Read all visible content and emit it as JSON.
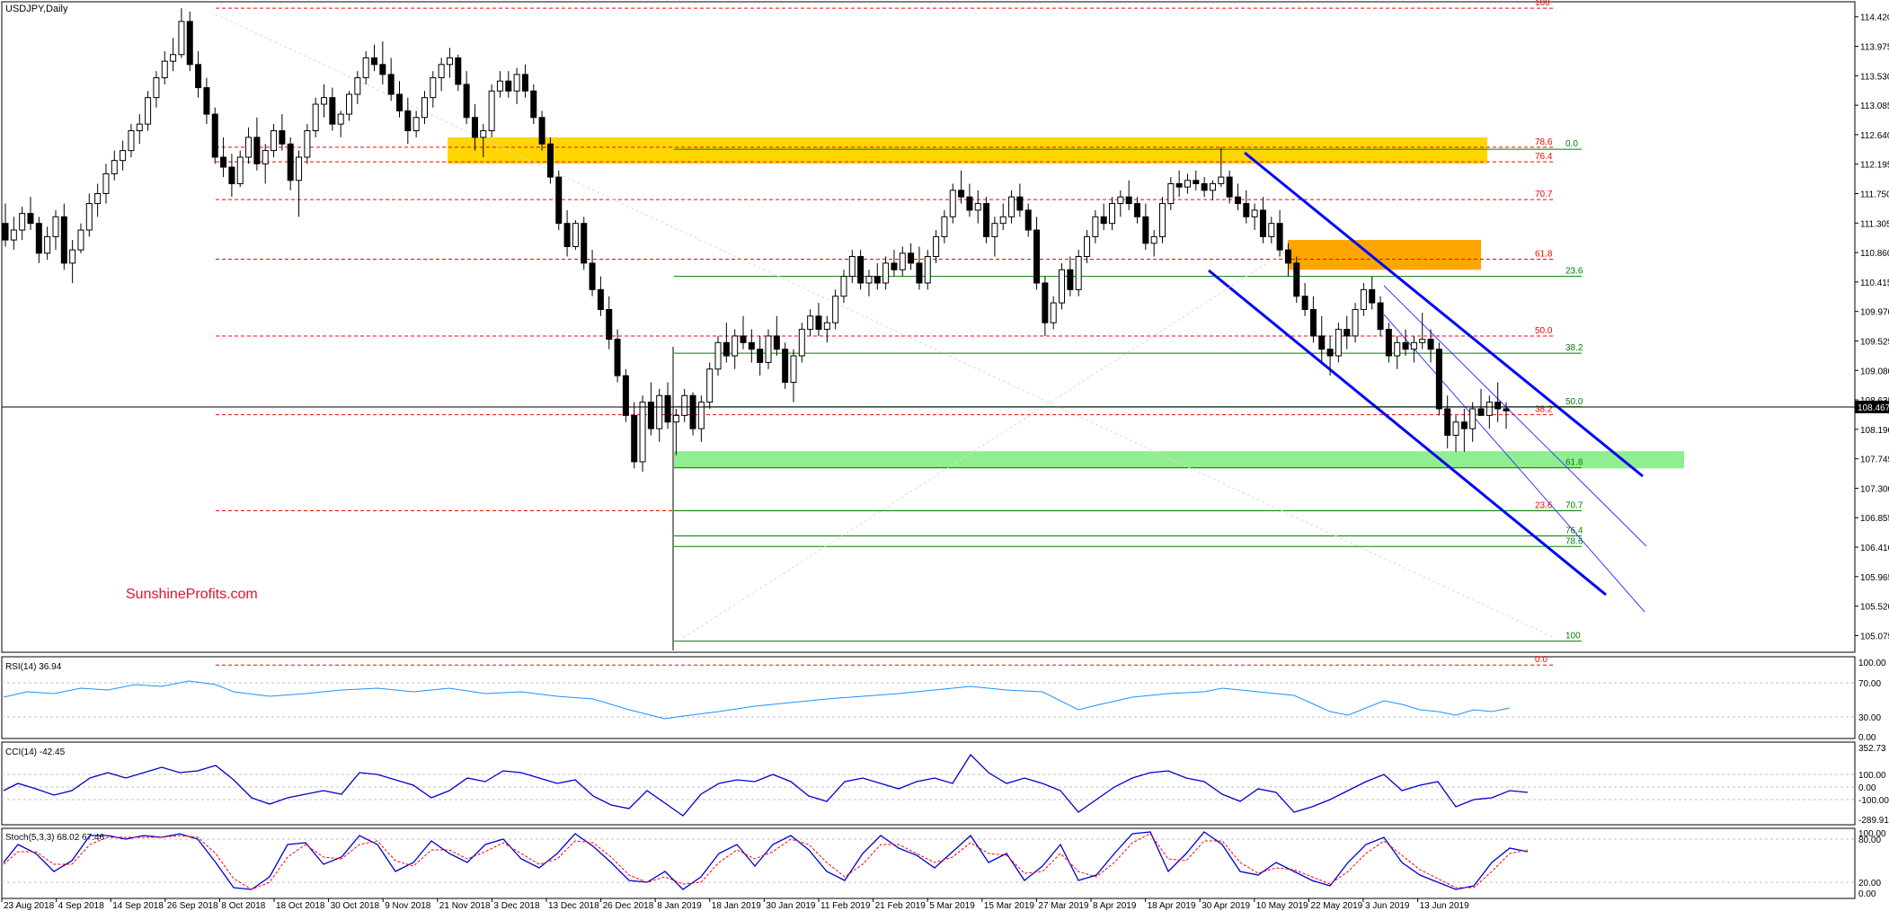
{
  "chart_data": {
    "type": "candlestick",
    "title": "USDJPY,Daily",
    "watermark": "SunshineProfits.com",
    "current_price": "108.467",
    "price_axis": {
      "min": 104.85,
      "max": 114.62,
      "ticks": [
        "114.420",
        "113.975",
        "113.530",
        "113.085",
        "112.640",
        "112.195",
        "111.750",
        "111.305",
        "110.860",
        "110.415",
        "109.970",
        "109.525",
        "109.080",
        "108.635",
        "108.190",
        "107.745",
        "107.300",
        "106.855",
        "106.410",
        "105.965",
        "105.520",
        "105.075"
      ]
    },
    "date_axis": {
      "labels": [
        "23 Aug 2018",
        "4 Sep 2018",
        "14 Sep 2018",
        "26 Sep 2018",
        "8 Oct 2018",
        "18 Oct 2018",
        "30 Oct 2018",
        "9 Nov 2018",
        "21 Nov 2018",
        "3 Dec 2018",
        "13 Dec 2018",
        "26 Dec 2018",
        "8 Jan 2019",
        "18 Jan 2019",
        "30 Jan 2019",
        "11 Feb 2019",
        "21 Feb 2019",
        "5 Mar 2019",
        "15 Mar 2019",
        "27 Mar 2019",
        "8 Apr 2019",
        "18 Apr 2019",
        "30 Apr 2019",
        "10 May 2019",
        "22 May 2019",
        "3 Jun 2019",
        "13 Jun 2019"
      ]
    },
    "fib_retracement_red": [
      {
        "label": "100",
        "price": 114.55
      },
      {
        "label": "78.6",
        "price": 112.45
      },
      {
        "label": "76.4",
        "price": 112.23
      },
      {
        "label": "70.7",
        "price": 111.66
      },
      {
        "label": "61.8",
        "price": 110.76
      },
      {
        "label": "50.0",
        "price": 109.6
      },
      {
        "label": "38.2",
        "price": 108.41
      },
      {
        "label": "23.6",
        "price": 106.96
      },
      {
        "label": "0.0",
        "price": 104.63
      }
    ],
    "fib_retracement_green": [
      {
        "label": "0.0",
        "price": 112.42
      },
      {
        "label": "23.6",
        "price": 110.5
      },
      {
        "label": "38.2",
        "price": 109.34
      },
      {
        "label": "50.0",
        "price": 108.53
      },
      {
        "label": "61.8",
        "price": 107.61
      },
      {
        "label": "70.7",
        "price": 106.96
      },
      {
        "label": "76.4",
        "price": 106.58
      },
      {
        "label": "78.6",
        "price": 106.42
      },
      {
        "label": "100",
        "price": 104.99
      }
    ],
    "zones": [
      {
        "name": "resistance-yellow",
        "color": "#ffd700",
        "from": 112.2,
        "to": 112.6
      },
      {
        "name": "resistance-orange",
        "color": "#ffa500",
        "from": 110.6,
        "to": 111.05
      },
      {
        "name": "support-green",
        "color": "#90ee90",
        "from": 107.6,
        "to": 107.86
      }
    ],
    "candles": [
      [
        111.3,
        111.6,
        110.95,
        111.05
      ],
      [
        111.05,
        111.4,
        110.9,
        111.2
      ],
      [
        111.2,
        111.55,
        111.05,
        111.45
      ],
      [
        111.45,
        111.7,
        111.2,
        111.3
      ],
      [
        111.3,
        111.4,
        110.7,
        110.85
      ],
      [
        110.85,
        111.25,
        110.75,
        111.1
      ],
      [
        111.1,
        111.5,
        110.9,
        111.4
      ],
      [
        111.4,
        111.6,
        110.6,
        110.7
      ],
      [
        110.7,
        111.05,
        110.4,
        110.9
      ],
      [
        110.9,
        111.3,
        110.85,
        111.2
      ],
      [
        111.2,
        111.75,
        111.1,
        111.6
      ],
      [
        111.6,
        111.9,
        111.4,
        111.75
      ],
      [
        111.75,
        112.2,
        111.6,
        112.05
      ],
      [
        112.05,
        112.4,
        111.95,
        112.25
      ],
      [
        112.25,
        112.55,
        112.1,
        112.4
      ],
      [
        112.4,
        112.8,
        112.3,
        112.7
      ],
      [
        112.7,
        112.95,
        112.5,
        112.8
      ],
      [
        112.8,
        113.3,
        112.7,
        113.2
      ],
      [
        113.2,
        113.6,
        113.05,
        113.5
      ],
      [
        113.5,
        113.9,
        113.4,
        113.75
      ],
      [
        113.75,
        114.1,
        113.6,
        113.85
      ],
      [
        113.85,
        114.55,
        113.8,
        114.35
      ],
      [
        114.35,
        114.5,
        113.6,
        113.7
      ],
      [
        113.7,
        113.9,
        113.2,
        113.35
      ],
      [
        113.35,
        113.5,
        112.8,
        112.95
      ],
      [
        112.95,
        113.05,
        112.2,
        112.3
      ],
      [
        112.3,
        112.6,
        112.0,
        112.15
      ],
      [
        112.15,
        112.35,
        111.7,
        111.9
      ],
      [
        111.9,
        112.4,
        111.85,
        112.3
      ],
      [
        112.3,
        112.75,
        112.2,
        112.6
      ],
      [
        112.6,
        112.9,
        112.1,
        112.2
      ],
      [
        112.2,
        112.5,
        111.9,
        112.4
      ],
      [
        112.4,
        112.8,
        112.3,
        112.7
      ],
      [
        112.7,
        112.95,
        112.4,
        112.5
      ],
      [
        112.5,
        112.6,
        111.8,
        111.95
      ],
      [
        111.95,
        112.4,
        111.4,
        112.3
      ],
      [
        112.3,
        112.8,
        112.2,
        112.7
      ],
      [
        112.7,
        113.2,
        112.6,
        113.1
      ],
      [
        113.1,
        113.4,
        112.9,
        113.2
      ],
      [
        113.2,
        113.35,
        112.7,
        112.8
      ],
      [
        112.8,
        113.0,
        112.6,
        112.95
      ],
      [
        112.95,
        113.3,
        112.85,
        113.25
      ],
      [
        113.25,
        113.6,
        113.1,
        113.5
      ],
      [
        113.5,
        113.9,
        113.4,
        113.8
      ],
      [
        113.8,
        114.0,
        113.6,
        113.7
      ],
      [
        113.7,
        114.05,
        113.4,
        113.55
      ],
      [
        113.55,
        113.8,
        113.15,
        113.25
      ],
      [
        113.25,
        113.45,
        112.9,
        113.0
      ],
      [
        113.0,
        113.2,
        112.5,
        112.7
      ],
      [
        112.7,
        113.0,
        112.6,
        112.9
      ],
      [
        112.9,
        113.3,
        112.8,
        113.2
      ],
      [
        113.2,
        113.6,
        113.05,
        113.5
      ],
      [
        113.5,
        113.8,
        113.3,
        113.7
      ],
      [
        113.7,
        113.95,
        113.5,
        113.8
      ],
      [
        113.8,
        113.85,
        113.3,
        113.4
      ],
      [
        113.4,
        113.6,
        112.8,
        112.9
      ],
      [
        112.9,
        113.1,
        112.4,
        112.6
      ],
      [
        112.6,
        112.8,
        112.3,
        112.7
      ],
      [
        112.7,
        113.4,
        112.6,
        113.3
      ],
      [
        113.3,
        113.6,
        113.2,
        113.45
      ],
      [
        113.45,
        113.6,
        113.2,
        113.3
      ],
      [
        113.3,
        113.65,
        113.1,
        113.55
      ],
      [
        113.55,
        113.7,
        113.2,
        113.3
      ],
      [
        113.3,
        113.4,
        112.8,
        112.9
      ],
      [
        112.9,
        113.0,
        112.4,
        112.5
      ],
      [
        112.5,
        112.6,
        111.9,
        112.0
      ],
      [
        112.0,
        112.1,
        111.2,
        111.3
      ],
      [
        111.3,
        111.5,
        110.8,
        110.95
      ],
      [
        110.95,
        111.35,
        110.9,
        111.3
      ],
      [
        111.3,
        111.4,
        110.6,
        110.7
      ],
      [
        110.7,
        110.9,
        110.2,
        110.3
      ],
      [
        110.3,
        110.5,
        109.9,
        110.0
      ],
      [
        110.0,
        110.2,
        109.4,
        109.55
      ],
      [
        109.55,
        109.7,
        108.9,
        109.0
      ],
      [
        109.0,
        109.1,
        108.3,
        108.4
      ],
      [
        108.4,
        108.6,
        107.6,
        107.7
      ],
      [
        107.7,
        108.7,
        107.55,
        108.6
      ],
      [
        108.6,
        108.9,
        108.1,
        108.2
      ],
      [
        108.2,
        108.8,
        108.0,
        108.7
      ],
      [
        108.7,
        108.9,
        108.2,
        108.3
      ],
      [
        108.3,
        108.5,
        107.8,
        108.4
      ],
      [
        108.4,
        108.8,
        108.3,
        108.7
      ],
      [
        108.7,
        108.75,
        108.1,
        108.2
      ],
      [
        108.2,
        108.7,
        108.0,
        108.6
      ],
      [
        108.6,
        109.2,
        108.5,
        109.1
      ],
      [
        109.1,
        109.6,
        109.0,
        109.5
      ],
      [
        109.5,
        109.8,
        109.2,
        109.3
      ],
      [
        109.3,
        109.7,
        109.1,
        109.6
      ],
      [
        109.6,
        109.9,
        109.4,
        109.5
      ],
      [
        109.5,
        109.7,
        109.2,
        109.4
      ],
      [
        109.4,
        109.6,
        109.0,
        109.2
      ],
      [
        109.2,
        109.7,
        109.1,
        109.6
      ],
      [
        109.6,
        109.9,
        109.3,
        109.4
      ],
      [
        109.4,
        109.5,
        108.8,
        108.9
      ],
      [
        108.9,
        109.4,
        108.6,
        109.3
      ],
      [
        109.3,
        109.8,
        109.2,
        109.7
      ],
      [
        109.7,
        110.0,
        109.6,
        109.9
      ],
      [
        109.9,
        110.1,
        109.6,
        109.7
      ],
      [
        109.7,
        109.9,
        109.5,
        109.8
      ],
      [
        109.8,
        110.3,
        109.7,
        110.2
      ],
      [
        110.2,
        110.6,
        110.1,
        110.5
      ],
      [
        110.5,
        110.9,
        110.4,
        110.8
      ],
      [
        110.8,
        110.9,
        110.3,
        110.4
      ],
      [
        110.4,
        110.6,
        110.2,
        110.5
      ],
      [
        110.5,
        110.7,
        110.3,
        110.4
      ],
      [
        110.4,
        110.8,
        110.3,
        110.7
      ],
      [
        110.7,
        110.9,
        110.5,
        110.6
      ],
      [
        110.6,
        110.95,
        110.5,
        110.85
      ],
      [
        110.85,
        111.0,
        110.6,
        110.7
      ],
      [
        110.7,
        110.95,
        110.3,
        110.4
      ],
      [
        110.4,
        110.9,
        110.3,
        110.8
      ],
      [
        110.8,
        111.2,
        110.7,
        111.1
      ],
      [
        111.1,
        111.5,
        111.0,
        111.4
      ],
      [
        111.4,
        111.9,
        111.3,
        111.8
      ],
      [
        111.8,
        112.1,
        111.6,
        111.7
      ],
      [
        111.7,
        111.9,
        111.4,
        111.5
      ],
      [
        111.5,
        111.8,
        111.3,
        111.6
      ],
      [
        111.6,
        111.7,
        111.0,
        111.1
      ],
      [
        111.1,
        111.4,
        110.8,
        111.3
      ],
      [
        111.3,
        111.6,
        111.2,
        111.4
      ],
      [
        111.4,
        111.8,
        111.3,
        111.7
      ],
      [
        111.7,
        111.9,
        111.4,
        111.5
      ],
      [
        111.5,
        111.6,
        111.1,
        111.2
      ],
      [
        111.2,
        111.4,
        110.3,
        110.4
      ],
      [
        110.4,
        110.5,
        109.6,
        109.8
      ],
      [
        109.8,
        110.2,
        109.7,
        110.1
      ],
      [
        110.1,
        110.7,
        110.0,
        110.6
      ],
      [
        110.6,
        110.8,
        110.2,
        110.3
      ],
      [
        110.3,
        110.9,
        110.2,
        110.8
      ],
      [
        110.8,
        111.2,
        110.7,
        111.1
      ],
      [
        111.1,
        111.5,
        111.0,
        111.4
      ],
      [
        111.4,
        111.6,
        111.2,
        111.3
      ],
      [
        111.3,
        111.7,
        111.2,
        111.6
      ],
      [
        111.6,
        111.8,
        111.4,
        111.7
      ],
      [
        111.7,
        111.95,
        111.5,
        111.6
      ],
      [
        111.6,
        111.7,
        111.3,
        111.4
      ],
      [
        111.4,
        111.6,
        110.9,
        111.0
      ],
      [
        111.0,
        111.2,
        110.8,
        111.1
      ],
      [
        111.1,
        111.7,
        111.0,
        111.6
      ],
      [
        111.6,
        112.0,
        111.5,
        111.9
      ],
      [
        111.9,
        112.1,
        111.7,
        111.85
      ],
      [
        111.85,
        112.05,
        111.75,
        111.95
      ],
      [
        111.95,
        112.1,
        111.8,
        111.9
      ],
      [
        111.9,
        112.0,
        111.7,
        111.8
      ],
      [
        111.8,
        111.95,
        111.65,
        111.9
      ],
      [
        111.9,
        112.45,
        111.85,
        112.0
      ],
      [
        112.0,
        112.1,
        111.6,
        111.7
      ],
      [
        111.7,
        111.9,
        111.5,
        111.6
      ],
      [
        111.6,
        111.8,
        111.3,
        111.4
      ],
      [
        111.4,
        111.6,
        111.2,
        111.5
      ],
      [
        111.5,
        111.7,
        111.0,
        111.1
      ],
      [
        111.1,
        111.4,
        111.0,
        111.3
      ],
      [
        111.3,
        111.5,
        110.8,
        110.9
      ],
      [
        110.9,
        111.0,
        110.5,
        110.7
      ],
      [
        110.7,
        110.8,
        110.1,
        110.2
      ],
      [
        110.2,
        110.4,
        109.9,
        110.0
      ],
      [
        110.0,
        110.2,
        109.5,
        109.6
      ],
      [
        109.6,
        109.9,
        109.2,
        109.4
      ],
      [
        109.4,
        109.6,
        109.0,
        109.3
      ],
      [
        109.3,
        109.8,
        109.2,
        109.7
      ],
      [
        109.7,
        109.9,
        109.4,
        109.6
      ],
      [
        109.6,
        110.1,
        109.5,
        110.0
      ],
      [
        110.0,
        110.4,
        109.9,
        110.3
      ],
      [
        110.3,
        110.5,
        110.0,
        110.1
      ],
      [
        110.1,
        110.2,
        109.6,
        109.7
      ],
      [
        109.7,
        109.8,
        109.2,
        109.3
      ],
      [
        109.3,
        109.6,
        109.1,
        109.5
      ],
      [
        109.5,
        109.7,
        109.3,
        109.4
      ],
      [
        109.4,
        109.6,
        109.2,
        109.5
      ],
      [
        109.5,
        109.95,
        109.4,
        109.55
      ],
      [
        109.55,
        109.7,
        109.2,
        109.4
      ],
      [
        109.4,
        109.5,
        108.4,
        108.5
      ],
      [
        108.5,
        108.7,
        107.9,
        108.1
      ],
      [
        108.1,
        108.4,
        107.85,
        108.3
      ],
      [
        108.3,
        108.5,
        107.85,
        108.2
      ],
      [
        108.2,
        108.6,
        108.0,
        108.5
      ],
      [
        108.5,
        108.8,
        108.4,
        108.4
      ],
      [
        108.4,
        108.7,
        108.2,
        108.6
      ],
      [
        108.6,
        108.9,
        108.3,
        108.5
      ],
      [
        108.5,
        108.6,
        108.2,
        108.47
      ]
    ]
  }
}
